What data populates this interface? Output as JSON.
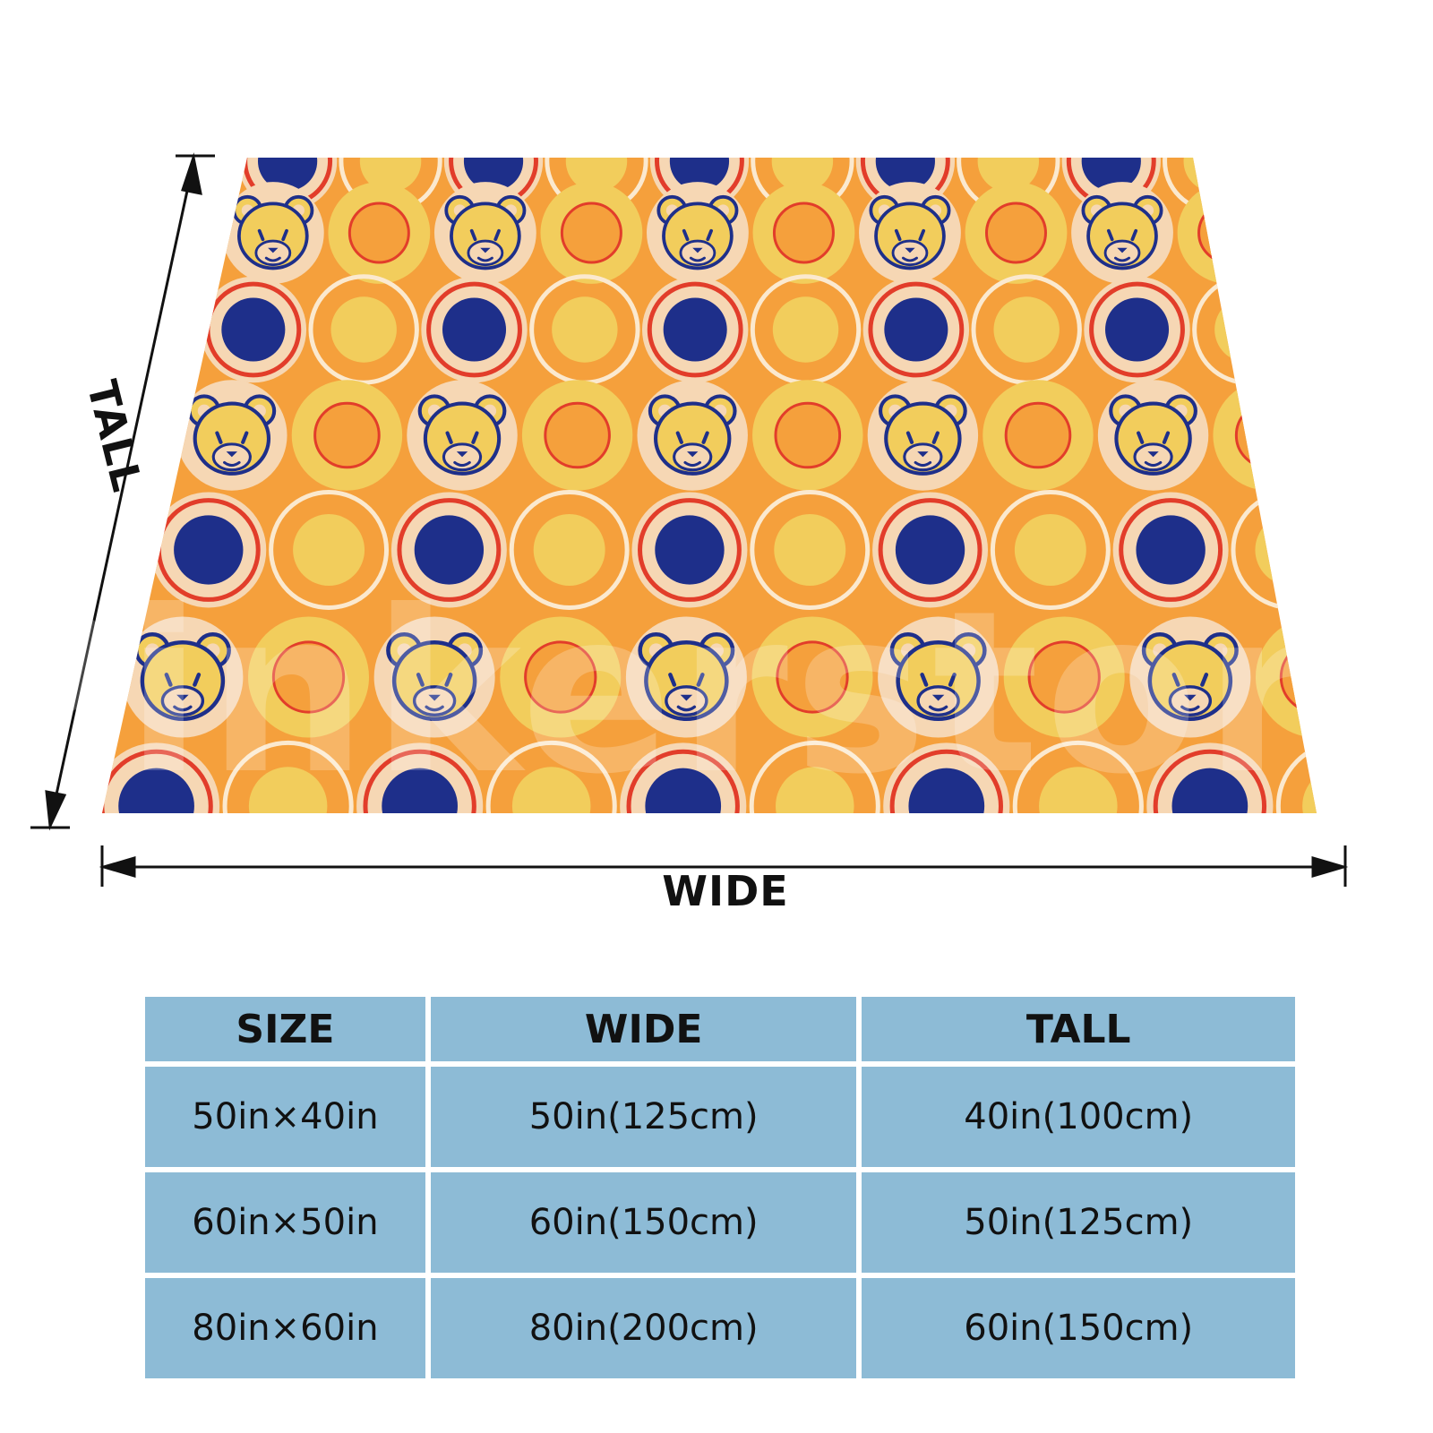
{
  "dimensions": {
    "wide_label": "WIDE",
    "tall_label": "TALL"
  },
  "watermark": "Pinkerstore",
  "colors": {
    "blanket_orange": "#f5a03c",
    "cream": "#f6d7b4",
    "yellow": "#f2cd5c",
    "red": "#e23d2a",
    "navy": "#1e2f8a",
    "table_blue": "#8dbbd6"
  },
  "size_table": {
    "headers": [
      "SIZE",
      "WIDE",
      "TALL"
    ],
    "rows": [
      [
        "50in×40in",
        "50in(125cm)",
        "40in(100cm)"
      ],
      [
        "60in×50in",
        "60in(150cm)",
        "50in(125cm)"
      ],
      [
        "80in×60in",
        "80in(200cm)",
        "60in(150cm)"
      ]
    ]
  }
}
